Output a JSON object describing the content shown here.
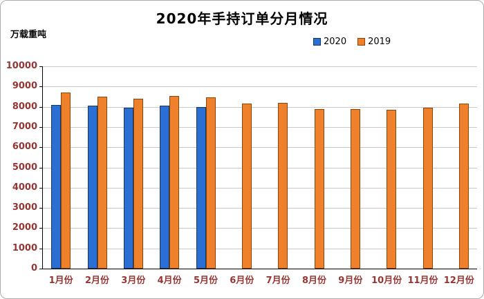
{
  "window": {
    "background": "#ffffff",
    "border_color": "#ababab"
  },
  "chart_data": {
    "type": "bar",
    "title": "2020年手持订单分月情况",
    "ylabel": "万载重吨",
    "xlabel": "",
    "categories": [
      "1月份",
      "2月份",
      "3月份",
      "4月份",
      "5月份",
      "6月份",
      "7月份",
      "8月份",
      "9月份",
      "10月份",
      "11月份",
      "12月份"
    ],
    "series": [
      {
        "name": "2020",
        "color": "#2b6fd4",
        "border": "#16365c",
        "values": [
          8100,
          8050,
          7950,
          8050,
          8000,
          null,
          null,
          null,
          null,
          null,
          null,
          null
        ]
      },
      {
        "name": "2019",
        "color": "#f0812c",
        "border": "#8a4407",
        "values": [
          8700,
          8500,
          8400,
          8550,
          8450,
          8150,
          8200,
          7900,
          7900,
          7850,
          7950,
          8150
        ]
      }
    ],
    "ylim": [
      0,
      10000
    ],
    "ytick_step": 1000,
    "grid": true,
    "legend_position": "top-right",
    "axis_label_color": "#943634"
  }
}
